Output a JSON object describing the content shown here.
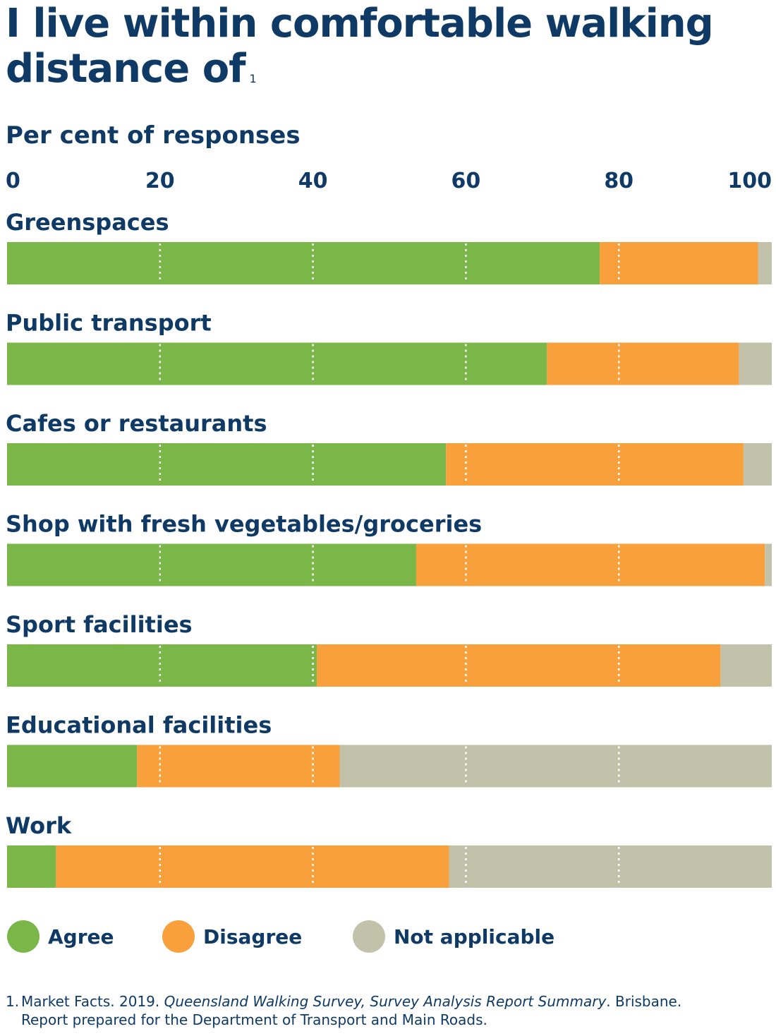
{
  "title": "I live within comfortable walking distance of",
  "title_footnote_marker": "1",
  "chart_data": {
    "type": "bar",
    "orientation": "horizontal",
    "stacked": true,
    "ylabel": "Per cent of responses",
    "xlim": [
      0,
      100
    ],
    "x_ticks": [
      0,
      20,
      40,
      60,
      80,
      100
    ],
    "x_tick_labels": [
      "0",
      "20",
      "40",
      "60",
      "80",
      "100"
    ],
    "grid": true,
    "categories": [
      "Greenspaces",
      "Public transport",
      "Cafes or restaurants",
      "Shop with fresh vegetables/groceries",
      "Sport facilities",
      "Educational facilities",
      "Work"
    ],
    "series": [
      {
        "name": "Agree",
        "color": "#7ab648",
        "values": [
          77.5,
          70.6,
          57.4,
          53.5,
          40.5,
          17.0,
          6.4
        ]
      },
      {
        "name": "Disagree",
        "color": "#f7a03c",
        "values": [
          20.7,
          25.1,
          38.9,
          45.6,
          52.8,
          26.5,
          51.4
        ]
      },
      {
        "name": "Not applicable",
        "color": "#c2c2ab",
        "values": [
          1.8,
          4.3,
          3.7,
          0.9,
          6.7,
          56.5,
          42.2
        ]
      }
    ],
    "legend_position": "bottom"
  },
  "footnote": {
    "number": "1.",
    "line1_pre": "Market Facts. 2019. ",
    "line1_italic": "Queensland Walking Survey, Survey Analysis Report Summary",
    "line1_post": ". Brisbane.",
    "line2": "Report prepared for the Department of Transport and Main Roads."
  }
}
